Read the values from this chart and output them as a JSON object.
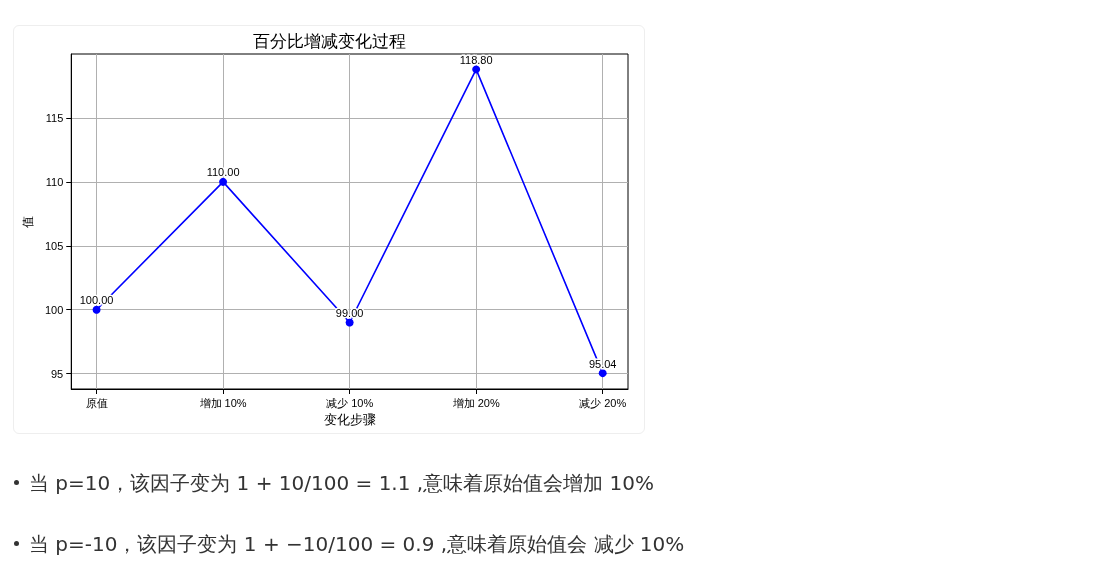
{
  "chart_data": {
    "type": "line",
    "title": "百分比增减变化过程",
    "xlabel": "变化步骤",
    "ylabel": "值",
    "categories": [
      "原值",
      "增加 10%",
      "减少 10%",
      "增加 20%",
      "减少 20%"
    ],
    "series": [
      {
        "color": "#0000ff",
        "values": [
          100,
          110,
          99,
          118.8,
          95.04
        ],
        "value_labels": [
          "100.00",
          "110.00",
          "99.00",
          "118.80",
          "95.04"
        ]
      }
    ],
    "ylim": [
      93.8,
      120
    ],
    "yticks": [
      95,
      100,
      105,
      110,
      115
    ],
    "grid": true,
    "marker": "circle",
    "line_style": "solid",
    "annotations": [
      "当 p=10，该因子变为 1 + 10/100 = 1.1 ,意味着原始值会增加 10%",
      "当 p=-10，该因子变为 1 + −10/100 = 0.9 ,意味着原始值会 减少 10%"
    ]
  }
}
